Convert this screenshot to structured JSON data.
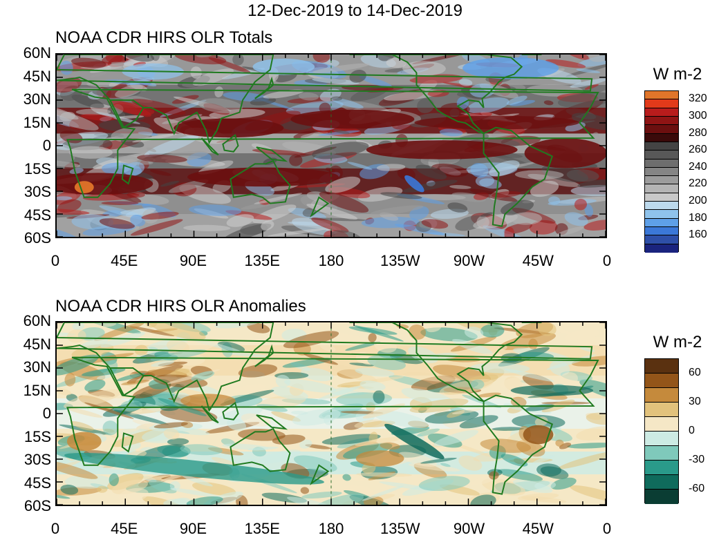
{
  "title": "12-Dec-2019 to 14-Dec-2019",
  "chart_data": [
    {
      "type": "heatmap",
      "title": "NOAA CDR HIRS OLR Totals",
      "x_ticks": [
        "0",
        "45E",
        "90E",
        "135E",
        "180",
        "135W",
        "90W",
        "45W",
        "0"
      ],
      "y_ticks": [
        "60N",
        "45N",
        "30N",
        "15N",
        "0",
        "15S",
        "30S",
        "45S",
        "60S"
      ],
      "xlim": [
        0,
        360
      ],
      "ylim": [
        -60,
        60
      ],
      "colorbar": {
        "title": "W m-2",
        "levels": [
          160,
          170,
          180,
          190,
          200,
          210,
          220,
          230,
          240,
          250,
          260,
          270,
          280,
          290,
          300,
          310,
          320
        ],
        "labels": [
          "320",
          "300",
          "280",
          "260",
          "240",
          "220",
          "200",
          "180",
          "160"
        ],
        "colors": [
          "#1a237e",
          "#2e4fa8",
          "#3b78d8",
          "#5ea0e8",
          "#8fc3ec",
          "#bcd9ec",
          "#c8c8c8",
          "#b4b4b4",
          "#9c9c9c",
          "#858585",
          "#6e6e6e",
          "#585858",
          "#444444",
          "#3a0a0a",
          "#6b0f0f",
          "#8f1414",
          "#b81c1c",
          "#e23a1a",
          "#e0752a"
        ]
      }
    },
    {
      "type": "heatmap",
      "title": "NOAA CDR HIRS OLR Anomalies",
      "x_ticks": [
        "0",
        "45E",
        "90E",
        "135E",
        "180",
        "135W",
        "90W",
        "45W",
        "0"
      ],
      "y_ticks": [
        "60N",
        "45N",
        "30N",
        "15N",
        "0",
        "15S",
        "30S",
        "45S",
        "60S"
      ],
      "xlim": [
        0,
        360
      ],
      "ylim": [
        -60,
        60
      ],
      "colorbar": {
        "title": "W m-2",
        "levels": [
          -60,
          -45,
          -30,
          -15,
          0,
          15,
          30,
          45,
          60
        ],
        "labels": [
          "60",
          "30",
          "0",
          "-30",
          "-60"
        ],
        "colors": [
          "#0a3d33",
          "#0f6b5c",
          "#2a9a8a",
          "#7fc9bb",
          "#cdebe4",
          "#f5e7c6",
          "#e2c27c",
          "#c58a3c",
          "#935519",
          "#5a3110"
        ]
      }
    }
  ],
  "colors": {
    "coastline": "#1f7a1f",
    "dateline": "#2a6b2a"
  }
}
